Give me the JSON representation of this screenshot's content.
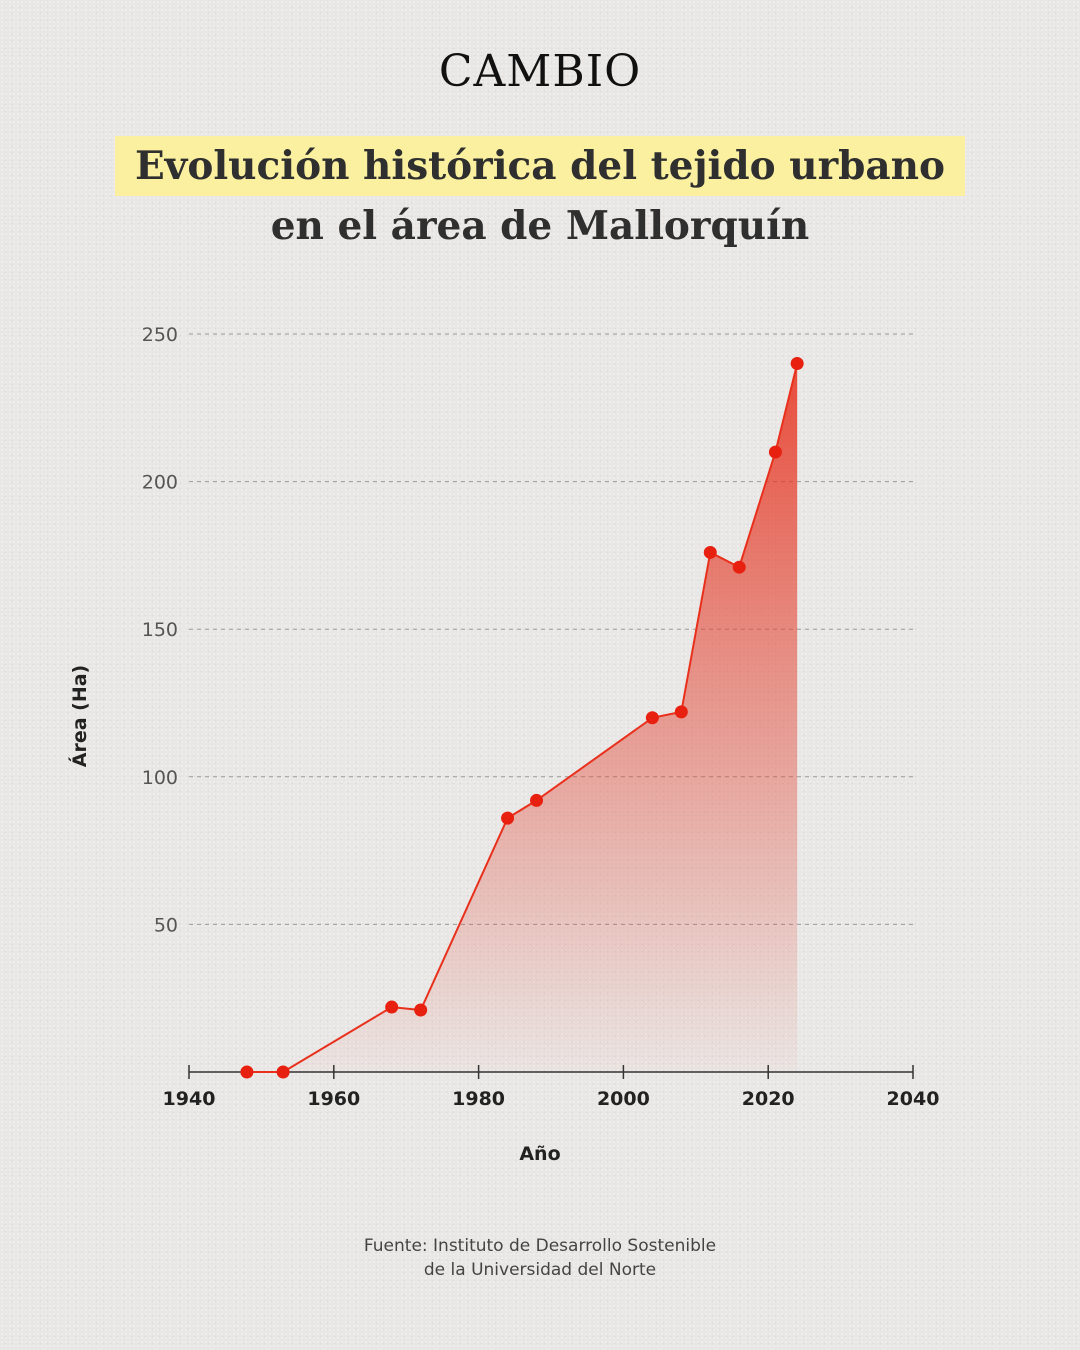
{
  "brand": "CAMBIO",
  "title": {
    "line1": "Evolución histórica del tejido urbano",
    "line2": "en el área de Mallorquín"
  },
  "source": {
    "line1": "Fuente: Instituto de Desarrollo Sostenible",
    "line2": "de la Universidad del Norte"
  },
  "colors": {
    "line": "#e8301c",
    "fill": "#e8301c",
    "highlight": "#faf0a0"
  },
  "chart_data": {
    "type": "area",
    "title": "Evolución histórica del tejido urbano en el área de Mallorquín",
    "xlabel": "Año",
    "ylabel": "Área (Ha)",
    "xlim": [
      1940,
      2040
    ],
    "ylim": [
      0,
      250
    ],
    "xticks": [
      1940,
      1960,
      1980,
      2000,
      2020,
      2040
    ],
    "yticks": [
      50,
      100,
      150,
      200,
      250
    ],
    "grid": "horizontal-dashed",
    "series": [
      {
        "x": [
          1948,
          1953,
          1968,
          1972,
          1984,
          1988,
          2004,
          2008,
          2012,
          2016,
          2021,
          2024
        ],
        "y": [
          0,
          0,
          22,
          21,
          86,
          92,
          120,
          122,
          176,
          171,
          210,
          240
        ]
      }
    ]
  }
}
